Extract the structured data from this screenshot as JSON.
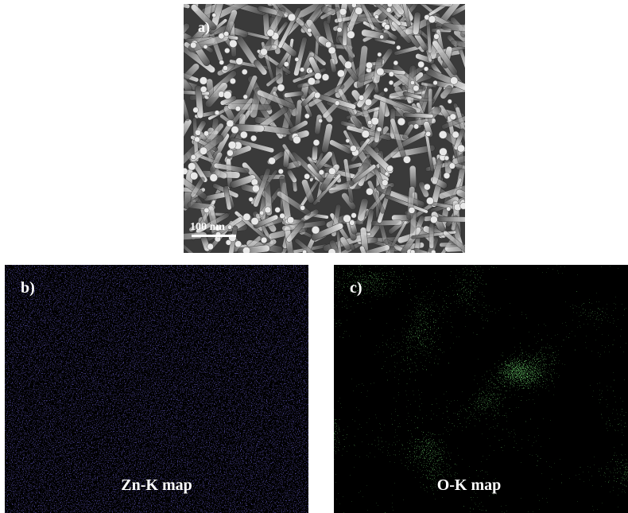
{
  "panels": [
    {
      "label": "a)",
      "scale_bar": "100 nm"
    },
    {
      "label": "b)",
      "caption": "Zn-K map"
    },
    {
      "label": "c)",
      "caption": "O-K map"
    }
  ]
}
